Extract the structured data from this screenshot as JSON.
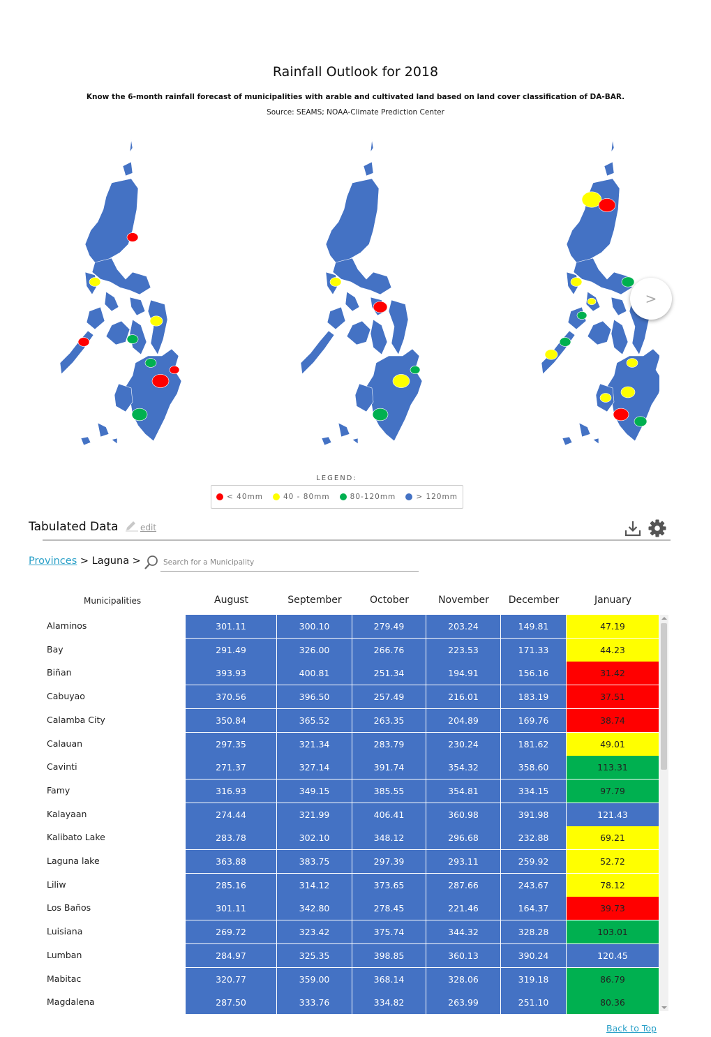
{
  "header": {
    "title": "Rainfall Outlook for 2018",
    "subtitle": "Know the 6-month rainfall forecast of municipalities with arable and cultivated land based on land cover classification of DA-BAR.",
    "source": "Source: SEAMS; NOAA-Climate Prediction Center"
  },
  "carousel": {
    "next_label": ">"
  },
  "legend": {
    "title": "LEGEND:",
    "items": [
      {
        "label": "< 40mm",
        "color": "#ff0000"
      },
      {
        "label": "40 - 80mm",
        "color": "#ffff00"
      },
      {
        "label": "80-120mm",
        "color": "#00b050"
      },
      {
        "label": "> 120mm",
        "color": "#4472c4"
      }
    ]
  },
  "colors": {
    "red": "#ff0000",
    "yellow": "#ffff00",
    "green": "#00b050",
    "blue": "#4472c4"
  },
  "section": {
    "title": "Tabulated Data",
    "edit_label": "edit"
  },
  "toolbar": {
    "download_icon": "download-icon",
    "settings_icon": "gear-icon"
  },
  "breadcrumb": {
    "provinces": "Provinces",
    "sep1": " > ",
    "province": "Laguna",
    "sep2": " >"
  },
  "search": {
    "placeholder": "Search for a Municipality",
    "value": ""
  },
  "table": {
    "row_header": "Municipalities",
    "months": [
      "August",
      "September",
      "October",
      "November",
      "December",
      "January"
    ],
    "rows": [
      {
        "name": "Alaminos",
        "values": [
          "301.11",
          "300.10",
          "279.49",
          "203.24",
          "149.81",
          "47.19"
        ]
      },
      {
        "name": "Bay",
        "values": [
          "291.49",
          "326.00",
          "266.76",
          "223.53",
          "171.33",
          "44.23"
        ]
      },
      {
        "name": "Biñan",
        "values": [
          "393.93",
          "400.81",
          "251.34",
          "194.91",
          "156.16",
          "31.42"
        ]
      },
      {
        "name": "Cabuyao",
        "values": [
          "370.56",
          "396.50",
          "257.49",
          "216.01",
          "183.19",
          "37.51"
        ]
      },
      {
        "name": "Calamba City",
        "values": [
          "350.84",
          "365.52",
          "263.35",
          "204.89",
          "169.76",
          "38.74"
        ]
      },
      {
        "name": "Calauan",
        "values": [
          "297.35",
          "321.34",
          "283.79",
          "230.24",
          "181.62",
          "49.01"
        ]
      },
      {
        "name": "Cavinti",
        "values": [
          "271.37",
          "327.14",
          "391.74",
          "354.32",
          "358.60",
          "113.31"
        ]
      },
      {
        "name": "Famy",
        "values": [
          "316.93",
          "349.15",
          "385.55",
          "354.81",
          "334.15",
          "97.79"
        ]
      },
      {
        "name": "Kalayaan",
        "values": [
          "274.44",
          "321.99",
          "406.41",
          "360.98",
          "391.98",
          "121.43"
        ]
      },
      {
        "name": "Kalibato Lake",
        "values": [
          "283.78",
          "302.10",
          "348.12",
          "296.68",
          "232.88",
          "69.21"
        ]
      },
      {
        "name": "Laguna lake",
        "values": [
          "363.88",
          "383.75",
          "297.39",
          "293.11",
          "259.92",
          "52.72"
        ]
      },
      {
        "name": "Liliw",
        "values": [
          "285.16",
          "314.12",
          "373.65",
          "287.66",
          "243.67",
          "78.12"
        ]
      },
      {
        "name": "Los Baños",
        "values": [
          "301.11",
          "342.80",
          "278.45",
          "221.46",
          "164.37",
          "39.73"
        ]
      },
      {
        "name": "Luisiana",
        "values": [
          "269.72",
          "323.42",
          "375.74",
          "344.32",
          "328.28",
          "103.01"
        ]
      },
      {
        "name": "Lumban",
        "values": [
          "284.97",
          "325.35",
          "398.85",
          "360.13",
          "390.24",
          "120.45"
        ]
      },
      {
        "name": "Mabitac",
        "values": [
          "320.77",
          "359.00",
          "368.14",
          "328.06",
          "319.18",
          "86.79"
        ]
      },
      {
        "name": "Magdalena",
        "values": [
          "287.50",
          "333.76",
          "334.82",
          "263.99",
          "251.10",
          "80.36"
        ]
      }
    ]
  },
  "footer": {
    "back_to_top": "Back to Top"
  }
}
